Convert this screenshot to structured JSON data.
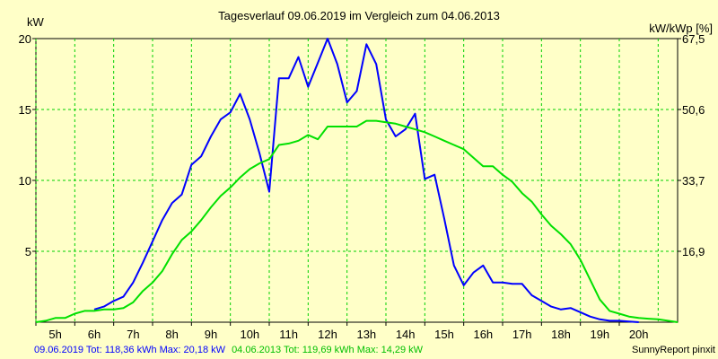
{
  "chart_data": {
    "type": "line",
    "title": "Tagesverlauf 09.06.2019 im Vergleich zum 04.06.2013",
    "left_unit": "kW",
    "right_unit": "kW/kWp [%]",
    "x_ticks": [
      "5h",
      "6h",
      "7h",
      "8h",
      "9h",
      "10h",
      "11h",
      "12h",
      "13h",
      "14h",
      "15h",
      "16h",
      "17h",
      "18h",
      "19h",
      "20h"
    ],
    "y_ticks_left": [
      "20",
      "15",
      "10",
      "5"
    ],
    "y_ticks_right": [
      "67,5",
      "50,6",
      "33,7",
      "16,9"
    ],
    "xlim": [
      4.5,
      21.0
    ],
    "ylim": [
      0,
      20
    ],
    "grid": true,
    "series": [
      {
        "name": "09.06.2019",
        "color": "#0000ff",
        "x": [
          6.0,
          6.25,
          6.5,
          6.75,
          7.0,
          7.25,
          7.5,
          7.75,
          8.0,
          8.25,
          8.5,
          8.75,
          9.0,
          9.25,
          9.5,
          9.75,
          10.0,
          10.25,
          10.5,
          10.75,
          11.0,
          11.25,
          11.5,
          11.75,
          12.0,
          12.25,
          12.5,
          12.75,
          13.0,
          13.25,
          13.5,
          13.75,
          14.0,
          14.25,
          14.5,
          14.75,
          15.0,
          15.25,
          15.5,
          15.75,
          16.0,
          16.25,
          16.5,
          16.75,
          17.0,
          17.25,
          17.5,
          17.75,
          18.0,
          18.25,
          18.5,
          18.75,
          19.0,
          19.25,
          19.5,
          19.75,
          20.0
        ],
        "y": [
          0.9,
          1.1,
          1.5,
          1.8,
          2.8,
          4.2,
          5.7,
          7.2,
          8.4,
          9.0,
          11.1,
          11.7,
          13.1,
          14.3,
          14.8,
          16.1,
          14.3,
          11.9,
          9.2,
          17.2,
          17.2,
          18.7,
          16.6,
          18.3,
          20.0,
          18.2,
          15.5,
          16.3,
          19.6,
          18.2,
          14.3,
          13.1,
          13.6,
          14.7,
          10.1,
          10.4,
          7.3,
          4.0,
          2.6,
          3.5,
          4.0,
          2.8,
          2.8,
          2.7,
          2.7,
          1.9,
          1.5,
          1.1,
          0.9,
          1.0,
          0.7,
          0.4,
          0.2,
          0.1,
          0.1,
          0.05,
          0.0
        ]
      },
      {
        "name": "04.06.2013",
        "color": "#00e000",
        "x": [
          4.5,
          4.75,
          5.0,
          5.25,
          5.5,
          5.75,
          6.0,
          6.25,
          6.5,
          6.75,
          7.0,
          7.25,
          7.5,
          7.75,
          8.0,
          8.25,
          8.5,
          8.75,
          9.0,
          9.25,
          9.5,
          9.75,
          10.0,
          10.25,
          10.5,
          10.75,
          11.0,
          11.25,
          11.5,
          11.75,
          12.0,
          12.25,
          12.5,
          12.75,
          13.0,
          13.25,
          13.5,
          13.75,
          14.0,
          14.25,
          14.5,
          14.75,
          15.0,
          15.25,
          15.5,
          15.75,
          16.0,
          16.25,
          16.5,
          16.75,
          17.0,
          17.25,
          17.5,
          17.75,
          18.0,
          18.25,
          18.5,
          18.75,
          19.0,
          19.25,
          19.5,
          19.75,
          20.0,
          20.25,
          20.5,
          20.75,
          21.0
        ],
        "y": [
          0.0,
          0.1,
          0.3,
          0.3,
          0.6,
          0.8,
          0.8,
          0.9,
          0.9,
          1.0,
          1.4,
          2.2,
          2.8,
          3.6,
          4.8,
          5.8,
          6.4,
          7.2,
          8.1,
          8.9,
          9.5,
          10.2,
          10.8,
          11.2,
          11.5,
          12.5,
          12.6,
          12.8,
          13.2,
          12.9,
          13.8,
          13.8,
          13.8,
          13.8,
          14.2,
          14.2,
          14.1,
          14.0,
          13.8,
          13.6,
          13.4,
          13.1,
          12.8,
          12.5,
          12.2,
          11.6,
          11.0,
          11.0,
          10.4,
          9.9,
          9.1,
          8.5,
          7.6,
          6.8,
          6.2,
          5.5,
          4.4,
          3.0,
          1.6,
          0.8,
          0.6,
          0.4,
          0.3,
          0.25,
          0.2,
          0.1,
          0.0
        ]
      }
    ]
  },
  "footer": {
    "series1_label": "09.06.2019 Tot: 118,36 kWh Max: 20,18 kW",
    "series2_label": "04.06.2013 Tot: 119,69 kWh Max: 14,29 kW",
    "credit": "SunnyReport pinxit"
  }
}
